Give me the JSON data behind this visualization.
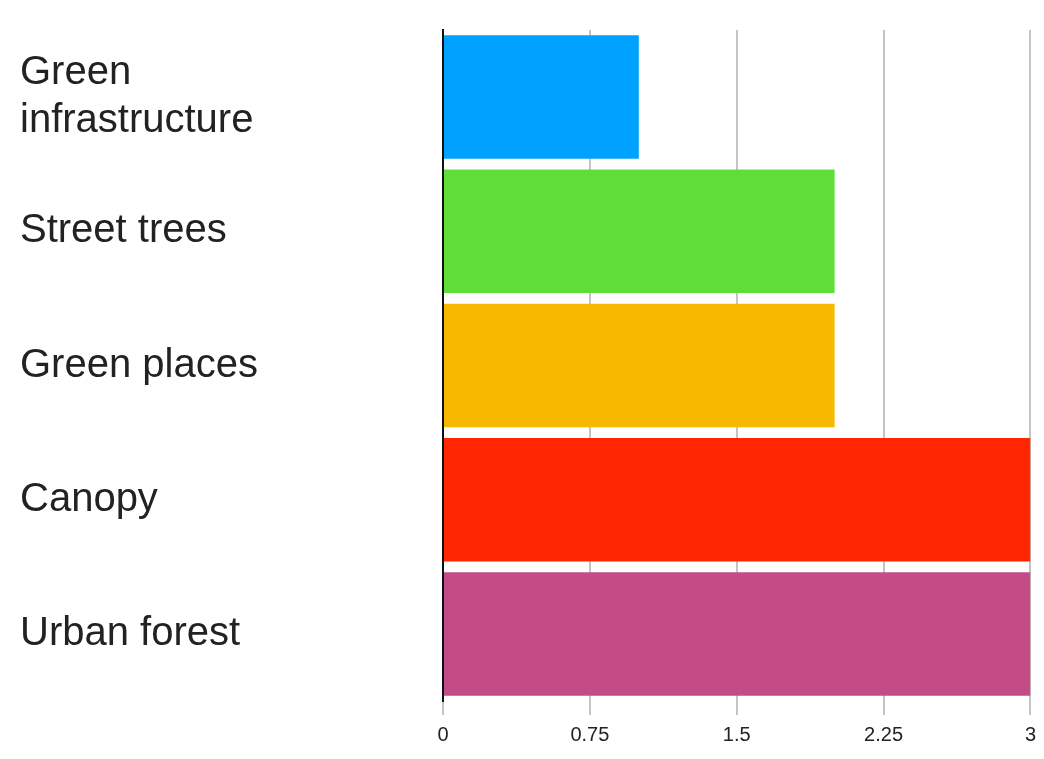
{
  "chart_data": {
    "type": "bar",
    "orientation": "horizontal",
    "categories": [
      "Green infrastructure",
      "Street trees",
      "Green places",
      "Canopy",
      "Urban forest"
    ],
    "values": [
      1,
      2,
      2,
      3,
      3
    ],
    "colors": [
      "#00a2ff",
      "#61dd3a",
      "#f6b900",
      "#ff2600",
      "#c34b86"
    ],
    "xlim": [
      0,
      3
    ],
    "xticks": [
      0,
      0.75,
      1.5,
      2.25,
      3
    ],
    "grid": "x",
    "legend": false
  }
}
